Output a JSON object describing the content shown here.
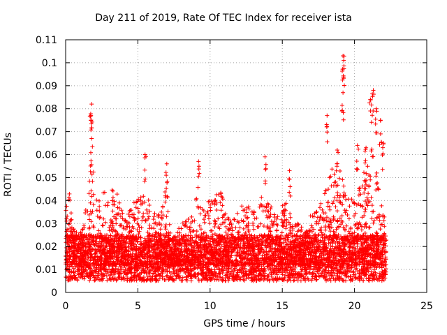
{
  "chart_data": {
    "type": "scatter",
    "title": "Day 211 of 2019, Rate Of TEC Index for receiver ista",
    "xlabel": "GPS time / hours",
    "ylabel": "ROTI / TECUs",
    "xlim": [
      0,
      25
    ],
    "ylim": [
      0,
      0.11
    ],
    "xticks": [
      0,
      5,
      10,
      15,
      20,
      25
    ],
    "xtick_labels": [
      "0",
      "5",
      "10",
      "15",
      "20",
      "25"
    ],
    "yticks": [
      0,
      0.01,
      0.02,
      0.03,
      0.04,
      0.05,
      0.06,
      0.07,
      0.08,
      0.09,
      0.1,
      0.11
    ],
    "ytick_labels": [
      "0",
      "0.01",
      "0.02",
      "0.03",
      "0.04",
      "0.05",
      "0.06",
      "0.07",
      "0.08",
      "0.09",
      "0.1",
      "0.11"
    ],
    "grid": true,
    "marker": "+",
    "color": "#ff0000",
    "data_extent_hours": [
      0,
      22.2
    ],
    "dense_band": [
      0.005,
      0.025
    ],
    "envelope": [
      {
        "x": 0.0,
        "upper": 0.035
      },
      {
        "x": 0.2,
        "upper": 0.047
      },
      {
        "x": 0.5,
        "upper": 0.03
      },
      {
        "x": 1.0,
        "upper": 0.025
      },
      {
        "x": 1.5,
        "upper": 0.04
      },
      {
        "x": 1.8,
        "upper": 0.06
      },
      {
        "x": 2.2,
        "upper": 0.04
      },
      {
        "x": 2.8,
        "upper": 0.045
      },
      {
        "x": 3.5,
        "upper": 0.045
      },
      {
        "x": 4.0,
        "upper": 0.033
      },
      {
        "x": 5.0,
        "upper": 0.042
      },
      {
        "x": 5.5,
        "upper": 0.045
      },
      {
        "x": 6.0,
        "upper": 0.035
      },
      {
        "x": 6.6,
        "upper": 0.035
      },
      {
        "x": 7.0,
        "upper": 0.048
      },
      {
        "x": 7.3,
        "upper": 0.022
      },
      {
        "x": 8.0,
        "upper": 0.03
      },
      {
        "x": 8.7,
        "upper": 0.033
      },
      {
        "x": 9.2,
        "upper": 0.045
      },
      {
        "x": 10.0,
        "upper": 0.04
      },
      {
        "x": 10.7,
        "upper": 0.045
      },
      {
        "x": 11.5,
        "upper": 0.03
      },
      {
        "x": 12.3,
        "upper": 0.04
      },
      {
        "x": 13.0,
        "upper": 0.035
      },
      {
        "x": 13.8,
        "upper": 0.045
      },
      {
        "x": 14.5,
        "upper": 0.035
      },
      {
        "x": 15.2,
        "upper": 0.04
      },
      {
        "x": 15.8,
        "upper": 0.03
      },
      {
        "x": 16.5,
        "upper": 0.03
      },
      {
        "x": 17.0,
        "upper": 0.035
      },
      {
        "x": 17.5,
        "upper": 0.038
      },
      {
        "x": 18.0,
        "upper": 0.045
      },
      {
        "x": 18.5,
        "upper": 0.055
      },
      {
        "x": 19.0,
        "upper": 0.055
      },
      {
        "x": 19.5,
        "upper": 0.042
      },
      {
        "x": 20.0,
        "upper": 0.04
      },
      {
        "x": 20.5,
        "upper": 0.05
      },
      {
        "x": 21.0,
        "upper": 0.058
      },
      {
        "x": 21.3,
        "upper": 0.07
      },
      {
        "x": 21.6,
        "upper": 0.055
      },
      {
        "x": 22.0,
        "upper": 0.04
      },
      {
        "x": 22.2,
        "upper": 0.03
      }
    ],
    "notable_peaks": [
      {
        "x": 1.8,
        "y": 0.082
      },
      {
        "x": 1.75,
        "y": 0.077
      },
      {
        "x": 1.8,
        "y": 0.067
      },
      {
        "x": 5.5,
        "y": 0.06
      },
      {
        "x": 7.0,
        "y": 0.056
      },
      {
        "x": 9.2,
        "y": 0.057
      },
      {
        "x": 13.8,
        "y": 0.059
      },
      {
        "x": 15.5,
        "y": 0.053
      },
      {
        "x": 18.1,
        "y": 0.077
      },
      {
        "x": 18.8,
        "y": 0.062
      },
      {
        "x": 19.2,
        "y": 0.103
      },
      {
        "x": 19.25,
        "y": 0.101
      },
      {
        "x": 19.2,
        "y": 0.087
      },
      {
        "x": 20.2,
        "y": 0.064
      },
      {
        "x": 20.8,
        "y": 0.063
      },
      {
        "x": 21.1,
        "y": 0.084
      },
      {
        "x": 21.3,
        "y": 0.088
      },
      {
        "x": 21.5,
        "y": 0.08
      },
      {
        "x": 21.8,
        "y": 0.075
      },
      {
        "x": 22.0,
        "y": 0.065
      }
    ]
  }
}
